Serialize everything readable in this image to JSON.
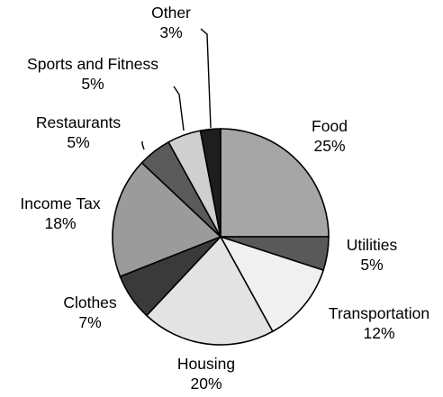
{
  "chart_data": {
    "type": "pie",
    "title": "",
    "unit": "%",
    "grid": false,
    "legend": "none",
    "slices": [
      {
        "label": "Food",
        "value": 25,
        "display": "25%",
        "color": "#a6a6a6"
      },
      {
        "label": "Utilities",
        "value": 5,
        "display": "5%",
        "color": "#595959"
      },
      {
        "label": "Transportation",
        "value": 12,
        "display": "12%",
        "color": "#f0f0f0"
      },
      {
        "label": "Housing",
        "value": 20,
        "display": "20%",
        "color": "#e3e3e3"
      },
      {
        "label": "Clothes",
        "value": 7,
        "display": "7%",
        "color": "#3a3a3a"
      },
      {
        "label": "Income Tax",
        "value": 18,
        "display": "18%",
        "color": "#9b9b9b"
      },
      {
        "label": "Restaurants",
        "value": 5,
        "display": "5%",
        "color": "#5a5a5a"
      },
      {
        "label": "Sports and Fitness",
        "value": 5,
        "display": "5%",
        "color": "#cfcfcf"
      },
      {
        "label": "Other",
        "value": 3,
        "display": "3%",
        "color": "#1e1e1e"
      }
    ]
  }
}
